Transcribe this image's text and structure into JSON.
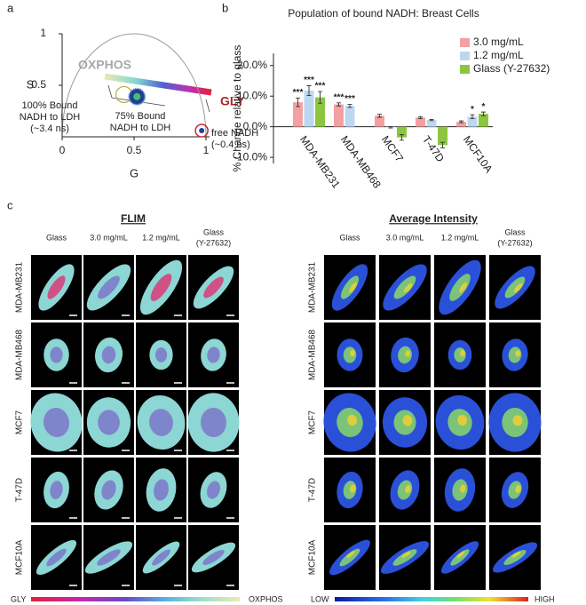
{
  "panel_labels": [
    "a",
    "b",
    "c"
  ],
  "chart_data": [
    {
      "type": "phasor",
      "xlabel": "G",
      "ylabel": "S",
      "xlim": [
        0,
        1
      ],
      "ylim": [
        0,
        1
      ],
      "xticks": [
        0,
        0.5,
        1
      ],
      "yticks": [
        0.5,
        1
      ],
      "x": [
        0.43,
        0.52,
        0.97
      ],
      "y": [
        0.41,
        0.39,
        0.06
      ],
      "colors": [
        "#b5a84a",
        "#1f3f8f",
        "#c8282e"
      ],
      "annotations": [
        {
          "lines": [
            "OXPHOS"
          ],
          "color": "#a8a8a8"
        },
        {
          "lines": [
            "GLY"
          ],
          "color": "#b0242a"
        },
        {
          "lines": [
            "100% Bound",
            "NADH to LDH",
            "(~3.4 ns)"
          ],
          "color": "#222222"
        },
        {
          "lines": [
            "75% Bound",
            "NADH to LDH"
          ],
          "color": "#222222"
        },
        {
          "lines": [
            "free NADH",
            "(~0.4 ns)"
          ],
          "color": "#222222"
        }
      ]
    },
    {
      "type": "bar",
      "title": "Population of bound NADH: Breast Cells",
      "ylabel": "% Change relative to glass",
      "categories": [
        "MDA-MB231",
        "MDA-MB468",
        "MCF7",
        "T-47D",
        "MCF10A"
      ],
      "series": [
        {
          "name": "3.0 mg/mL",
          "color": "#f2a0a0",
          "values": [
            8.0,
            7.3,
            3.6,
            3.0,
            1.6
          ],
          "errors": [
            1.4,
            0.5,
            0.5,
            0.3,
            0.3
          ],
          "significance": [
            "***",
            "***",
            null,
            null,
            null
          ]
        },
        {
          "name": "1.2 mg/mL",
          "color": "#bdd7ef",
          "values": [
            11.8,
            6.8,
            -0.2,
            2.2,
            3.3
          ],
          "errors": [
            1.6,
            0.5,
            0.2,
            0.2,
            0.6
          ],
          "significance": [
            "***",
            "***",
            null,
            null,
            "*"
          ]
        },
        {
          "name": "Glass (Y-27632)",
          "color": "#8cc63f",
          "values": [
            9.6,
            null,
            -3.5,
            -6.0,
            4.2
          ],
          "errors": [
            1.9,
            null,
            0.9,
            0.9,
            0.6
          ],
          "significance": [
            "***",
            null,
            null,
            null,
            "*"
          ]
        }
      ],
      "ylim": [
        -12,
        24
      ],
      "yticks": [
        {
          "value": -10,
          "label": "-10.0%"
        },
        {
          "value": 0,
          "label": "0.0%"
        },
        {
          "value": 10,
          "label": "10.0%"
        },
        {
          "value": 20,
          "label": "20.0%"
        }
      ]
    }
  ],
  "figure_c": {
    "titles": [
      "FLIM",
      "Average Intensity"
    ],
    "columns": [
      [
        "Glass"
      ],
      [
        "3.0 mg/mL"
      ],
      [
        "1.2 mg/mL"
      ],
      [
        "Glass",
        "(Y-27632)"
      ]
    ],
    "rows": [
      "MDA-MB231",
      "MDA-MB468",
      "MCF7",
      "T-47D",
      "MCF10A"
    ],
    "colorbars": [
      {
        "low": "GLY",
        "high": "OXPHOS"
      },
      {
        "low": "LOW",
        "high": "HIGH"
      }
    ]
  }
}
